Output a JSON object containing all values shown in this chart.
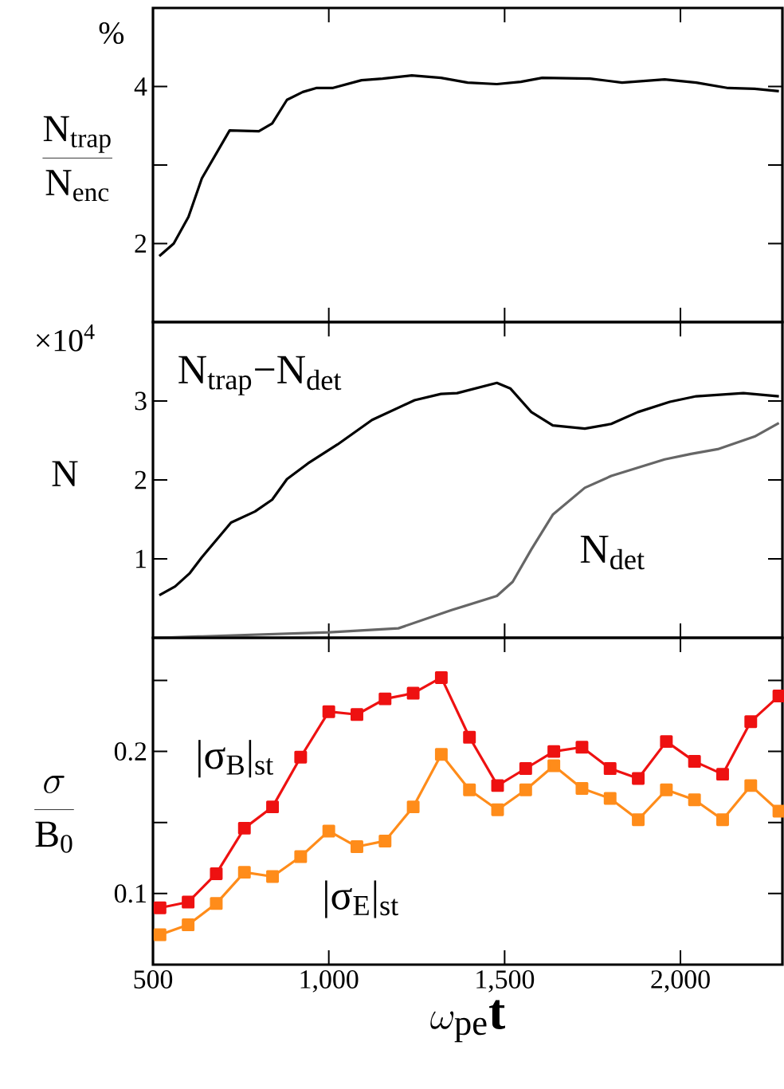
{
  "chart_data": [
    {
      "type": "line",
      "ylabel": "\\frac{\\mathrm{N_{trap}}}{\\mathrm{N_{enc}}}",
      "annotations": [
        "%"
      ],
      "xlim": [
        500,
        2290
      ],
      "xticks": [
        500,
        1000,
        1500,
        2000
      ],
      "ylim": [
        1,
        5
      ],
      "yticks": [
        2,
        {
          "value": 3,
          "label": null
        },
        4
      ],
      "tick_labels": "y",
      "series": [
        {
          "color": "#000000",
          "x": [
            518,
            559,
            601,
            639,
            718,
            801,
            839,
            881,
            926,
            964,
            1010,
            1093,
            1153,
            1236,
            1319,
            1395,
            1478,
            1546,
            1607,
            1743,
            1834,
            1955,
            2045,
            2136,
            2211,
            2280
          ],
          "values": [
            1.84,
            2.0,
            2.34,
            2.83,
            3.44,
            3.43,
            3.53,
            3.83,
            3.93,
            3.98,
            3.98,
            4.08,
            4.1,
            4.14,
            4.11,
            4.05,
            4.03,
            4.06,
            4.11,
            4.1,
            4.05,
            4.09,
            4.05,
            3.98,
            3.97,
            3.94
          ]
        }
      ]
    },
    {
      "type": "line",
      "ylabel": "\\mathrm{N}",
      "annotations": [
        "×10$^{4}$"
      ],
      "xlim": [
        500,
        2290
      ],
      "xticks": [
        500,
        1000,
        1500,
        2000
      ],
      "ylim": [
        0,
        4
      ],
      "yticks": [
        1,
        2,
        3
      ],
      "tick_labels": "y",
      "series": [
        {
          "name": "N$_{trap}$−N$_{det}$",
          "color": "#000000",
          "x": [
            518,
            563,
            605,
            639,
            722,
            790,
            839,
            881,
            941,
            1025,
            1123,
            1244,
            1319,
            1365,
            1478,
            1516,
            1576,
            1637,
            1728,
            1803,
            1879,
            1970,
            2045,
            2179,
            2280
          ],
          "values": [
            0.54,
            0.65,
            0.82,
            1.02,
            1.46,
            1.6,
            1.75,
            2.01,
            2.21,
            2.45,
            2.76,
            3.01,
            3.09,
            3.1,
            3.23,
            3.16,
            2.86,
            2.69,
            2.65,
            2.71,
            2.86,
            2.99,
            3.06,
            3.1,
            3.06
          ]
        },
        {
          "name": "N$_{det}$",
          "color": "#666666",
          "x": [
            518,
            1002,
            1198,
            1349,
            1478,
            1523,
            1576,
            1637,
            1728,
            1803,
            1955,
            2030,
            2106,
            2211,
            2280
          ],
          "values": [
            0.0,
            0.07,
            0.12,
            0.35,
            0.53,
            0.71,
            1.12,
            1.56,
            1.9,
            2.05,
            2.26,
            2.33,
            2.39,
            2.55,
            2.72
          ]
        }
      ]
    },
    {
      "type": "line",
      "xlabel": "\\omega_{\\mathrm{pe}}\\mathbf{t}",
      "ylabel": "\\frac{\\sigma}{\\mathrm{B_0}}",
      "xlim": [
        500,
        2290
      ],
      "xticks": [
        500,
        {
          "value": 1000,
          "label": "1,000"
        },
        {
          "value": 1500,
          "label": "1,500"
        },
        {
          "value": 2000,
          "label": "2,000"
        }
      ],
      "ylim": [
        0.05,
        0.28
      ],
      "yticks": [
        0.1,
        {
          "value": 0.15,
          "label": null
        },
        0.2,
        {
          "value": 0.25,
          "label": null
        }
      ],
      "marker": "square",
      "series": [
        {
          "name": "|σ$_{B}$|$_{st}$",
          "color": "#ee1111",
          "x": [
            520,
            600,
            680,
            760,
            840,
            920,
            1000,
            1080,
            1160,
            1240,
            1320,
            1400,
            1480,
            1560,
            1640,
            1720,
            1800,
            1880,
            1960,
            2040,
            2120,
            2200,
            2280
          ],
          "values": [
            0.09,
            0.094,
            0.114,
            0.146,
            0.161,
            0.196,
            0.228,
            0.226,
            0.237,
            0.241,
            0.252,
            0.21,
            0.176,
            0.188,
            0.2,
            0.203,
            0.188,
            0.181,
            0.207,
            0.193,
            0.184,
            0.221,
            0.239
          ]
        },
        {
          "name": "|σ$_{E}$|$_{st}$",
          "color": "#ff8c1a",
          "x": [
            520,
            600,
            680,
            760,
            840,
            920,
            1000,
            1080,
            1160,
            1240,
            1320,
            1400,
            1480,
            1560,
            1640,
            1720,
            1800,
            1880,
            1960,
            2040,
            2120,
            2200,
            2280
          ],
          "values": [
            0.071,
            0.078,
            0.093,
            0.115,
            0.112,
            0.126,
            0.144,
            0.133,
            0.137,
            0.161,
            0.198,
            0.173,
            0.159,
            0.173,
            0.19,
            0.174,
            0.167,
            0.152,
            0.173,
            0.166,
            0.152,
            0.176,
            0.158
          ]
        }
      ]
    }
  ]
}
